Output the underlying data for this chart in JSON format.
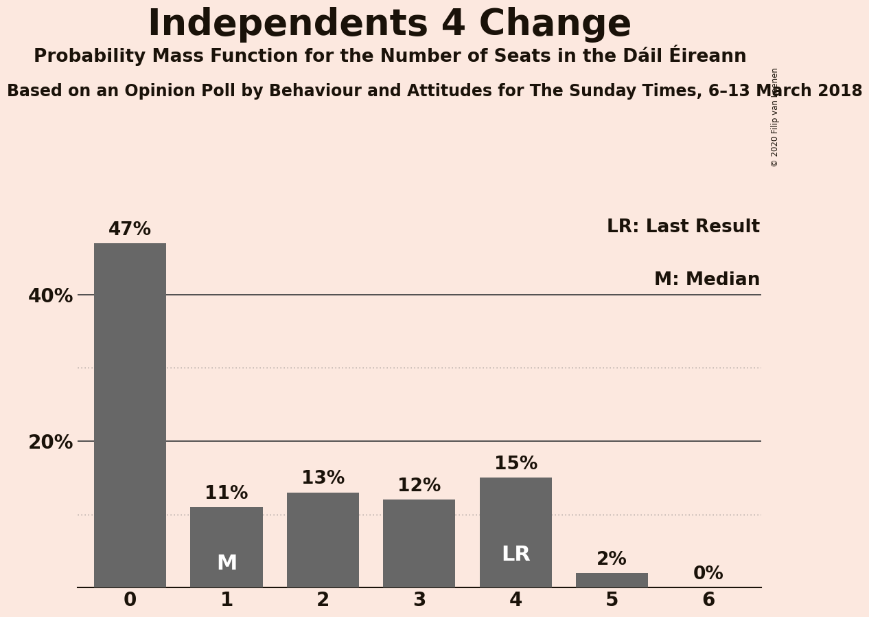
{
  "title": "Independents 4 Change",
  "subtitle": "Probability Mass Function for the Number of Seats in the Dáil Éireann",
  "source_line": "Based on an Opinion Poll by Behaviour and Attitudes for The Sunday Times, 6–13 March 2018",
  "copyright_text": "© 2020 Filip van Laenen",
  "categories": [
    0,
    1,
    2,
    3,
    4,
    5,
    6
  ],
  "values": [
    47,
    11,
    13,
    12,
    15,
    2,
    0
  ],
  "bar_color": "#676767",
  "background_color": "#fce8df",
  "text_color": "#1a1209",
  "bar_label_color_dark": "#1a1209",
  "bar_label_color_light": "#ffffff",
  "solid_grid_lines": [
    20,
    40
  ],
  "dotted_grid_lines": [
    10,
    30
  ],
  "legend_lr_text": "LR: Last Result",
  "legend_m_text": "M: Median",
  "median_bar": 1,
  "lr_bar": 4,
  "title_fontsize": 38,
  "subtitle_fontsize": 19,
  "source_fontsize": 17,
  "bar_label_fontsize": 19,
  "axis_tick_fontsize": 20,
  "legend_fontsize": 19,
  "ylim": [
    0,
    52
  ],
  "dotted_line_at_lr": 10
}
